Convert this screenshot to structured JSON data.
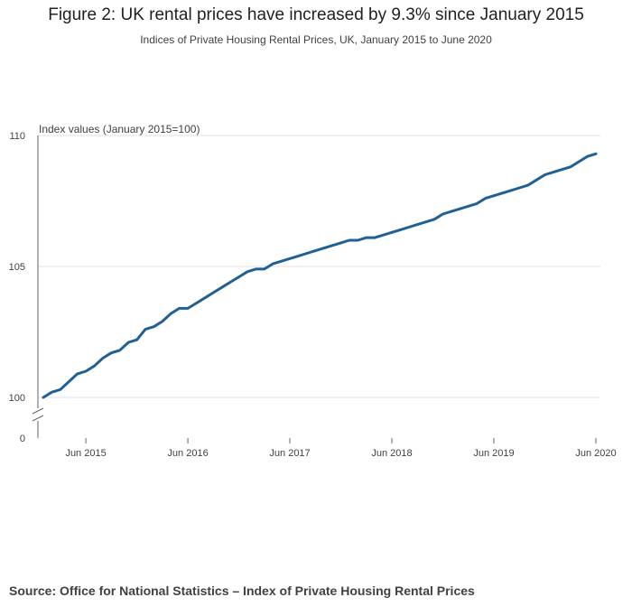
{
  "title": "Figure 2: UK rental prices have increased by 9.3% since January 2015",
  "subtitle": "Indices of Private Housing Rental Prices, UK, January 2015 to June 2020",
  "source": "Source: Office for National Statistics – Index of Private Housing Rental Prices",
  "colors": {
    "line": "#206095",
    "grid": "#e0e0e0",
    "axis": "#666666",
    "text": "#414042"
  },
  "chart_data": {
    "type": "line",
    "title": "Figure 2: UK rental prices have increased by 9.3% since January 2015",
    "subtitle": "Indices of Private Housing Rental Prices, UK, January 2015 to June 2020",
    "ylabel": "Index values (January 2015=100)",
    "xlabel": "",
    "y_ticks": [
      0,
      100,
      105,
      110
    ],
    "y_axis_break": "between 0 and 100",
    "ylim": [
      100,
      110
    ],
    "x_ticks": [
      "Jun 2015",
      "Jun 2016",
      "Jun 2017",
      "Jun 2018",
      "Jun 2019",
      "Jun 2020"
    ],
    "x_tick_month_index": [
      5,
      17,
      29,
      41,
      53,
      65
    ],
    "x_start": "Jan 2015",
    "x_end": "Jun 2020",
    "grid": true,
    "series": [
      {
        "name": "Index of Private Housing Rental Prices",
        "values": [
          100.0,
          100.2,
          100.3,
          100.6,
          100.9,
          101.0,
          101.2,
          101.5,
          101.7,
          101.8,
          102.1,
          102.2,
          102.6,
          102.7,
          102.9,
          103.2,
          103.4,
          103.4,
          103.6,
          103.8,
          104.0,
          104.2,
          104.4,
          104.6,
          104.8,
          104.9,
          104.9,
          105.1,
          105.2,
          105.3,
          105.4,
          105.5,
          105.6,
          105.7,
          105.8,
          105.9,
          106.0,
          106.0,
          106.1,
          106.1,
          106.2,
          106.3,
          106.4,
          106.5,
          106.6,
          106.7,
          106.8,
          107.0,
          107.1,
          107.2,
          107.3,
          107.4,
          107.6,
          107.7,
          107.8,
          107.9,
          108.0,
          108.1,
          108.3,
          108.5,
          108.6,
          108.7,
          108.8,
          109.0,
          109.2,
          109.3
        ]
      }
    ]
  }
}
